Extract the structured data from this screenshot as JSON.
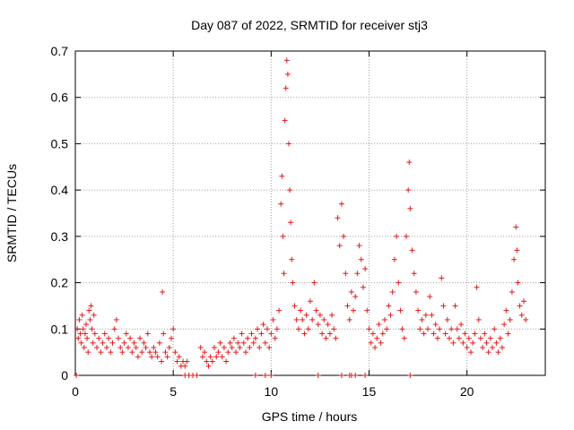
{
  "chart_data": {
    "type": "scatter",
    "title": "Day 087 of 2022, SRMTID for receiver stj3",
    "xlabel": "GPS time / hours",
    "ylabel": "SRMTID / TECUs",
    "xlim": [
      0,
      24
    ],
    "ylim": [
      0,
      0.7
    ],
    "xticks": [
      0,
      5,
      10,
      15,
      20
    ],
    "xtick_labels": [
      "0",
      "5",
      "10",
      "15",
      "20"
    ],
    "yticks": [
      0,
      0.1,
      0.2,
      0.3,
      0.4,
      0.5,
      0.6,
      0.7
    ],
    "ytick_labels": [
      "0",
      "0.1",
      "0.2",
      "0.3",
      "0.4",
      "0.5",
      "0.6",
      "0.7"
    ],
    "grid": true,
    "marker": "+",
    "series": [
      {
        "name": "SRMTID",
        "color": "#e41a1c",
        "points": [
          [
            0.05,
            0.0
          ],
          [
            0.1,
            0.1
          ],
          [
            0.15,
            0.08
          ],
          [
            0.2,
            0.12
          ],
          [
            0.25,
            0.09
          ],
          [
            0.3,
            0.07
          ],
          [
            0.35,
            0.13
          ],
          [
            0.4,
            0.1
          ],
          [
            0.45,
            0.06
          ],
          [
            0.5,
            0.09
          ],
          [
            0.55,
            0.11
          ],
          [
            0.6,
            0.08
          ],
          [
            0.65,
            0.05
          ],
          [
            0.7,
            0.14
          ],
          [
            0.75,
            0.12
          ],
          [
            0.8,
            0.15
          ],
          [
            0.85,
            0.1
          ],
          [
            0.9,
            0.07
          ],
          [
            0.95,
            0.13
          ],
          [
            1.0,
            0.09
          ],
          [
            1.1,
            0.06
          ],
          [
            1.2,
            0.08
          ],
          [
            1.3,
            0.05
          ],
          [
            1.4,
            0.07
          ],
          [
            1.5,
            0.09
          ],
          [
            1.6,
            0.06
          ],
          [
            1.7,
            0.08
          ],
          [
            1.8,
            0.05
          ],
          [
            1.9,
            0.07
          ],
          [
            2.0,
            0.1
          ],
          [
            2.1,
            0.12
          ],
          [
            2.2,
            0.08
          ],
          [
            2.3,
            0.06
          ],
          [
            2.4,
            0.05
          ],
          [
            2.5,
            0.07
          ],
          [
            2.6,
            0.09
          ],
          [
            2.7,
            0.06
          ],
          [
            2.8,
            0.08
          ],
          [
            2.9,
            0.05
          ],
          [
            3.0,
            0.07
          ],
          [
            3.1,
            0.06
          ],
          [
            3.2,
            0.04
          ],
          [
            3.3,
            0.08
          ],
          [
            3.4,
            0.05
          ],
          [
            3.5,
            0.07
          ],
          [
            3.6,
            0.06
          ],
          [
            3.7,
            0.09
          ],
          [
            3.8,
            0.05
          ],
          [
            3.9,
            0.04
          ],
          [
            4.0,
            0.06
          ],
          [
            4.1,
            0.05
          ],
          [
            4.2,
            0.04
          ],
          [
            4.3,
            0.07
          ],
          [
            4.4,
            0.03
          ],
          [
            4.45,
            0.18
          ],
          [
            4.5,
            0.09
          ],
          [
            4.6,
            0.05
          ],
          [
            4.7,
            0.04
          ],
          [
            4.8,
            0.06
          ],
          [
            4.9,
            0.08
          ],
          [
            5.0,
            0.1
          ],
          [
            5.1,
            0.05
          ],
          [
            5.2,
            0.03
          ],
          [
            5.3,
            0.04
          ],
          [
            5.4,
            0.02
          ],
          [
            5.5,
            0.03
          ],
          [
            5.6,
            0.02
          ],
          [
            5.7,
            0.03
          ],
          [
            5.8,
            0.0
          ],
          [
            6.0,
            0.0
          ],
          [
            6.2,
            0.0
          ],
          [
            6.4,
            0.06
          ],
          [
            6.5,
            0.04
          ],
          [
            6.6,
            0.05
          ],
          [
            6.7,
            0.03
          ],
          [
            6.8,
            0.02
          ],
          [
            6.9,
            0.04
          ],
          [
            7.0,
            0.03
          ],
          [
            7.1,
            0.06
          ],
          [
            7.2,
            0.04
          ],
          [
            7.3,
            0.05
          ],
          [
            7.4,
            0.07
          ],
          [
            7.5,
            0.04
          ],
          [
            7.6,
            0.06
          ],
          [
            7.7,
            0.03
          ],
          [
            7.8,
            0.05
          ],
          [
            7.9,
            0.07
          ],
          [
            8.0,
            0.06
          ],
          [
            8.1,
            0.08
          ],
          [
            8.2,
            0.05
          ],
          [
            8.3,
            0.07
          ],
          [
            8.4,
            0.06
          ],
          [
            8.5,
            0.09
          ],
          [
            8.6,
            0.07
          ],
          [
            8.7,
            0.05
          ],
          [
            8.8,
            0.08
          ],
          [
            8.9,
            0.06
          ],
          [
            9.0,
            0.09
          ],
          [
            9.1,
            0.07
          ],
          [
            9.2,
            0.08
          ],
          [
            9.3,
            0.1
          ],
          [
            9.4,
            0.06
          ],
          [
            9.5,
            0.09
          ],
          [
            9.6,
            0.11
          ],
          [
            9.7,
            0.07
          ],
          [
            9.8,
            0.1
          ],
          [
            9.9,
            0.06
          ],
          [
            10.0,
            0.09
          ],
          [
            10.1,
            0.12
          ],
          [
            10.2,
            0.08
          ],
          [
            10.3,
            0.1
          ],
          [
            10.4,
            0.14
          ],
          [
            10.5,
            0.37
          ],
          [
            10.55,
            0.43
          ],
          [
            10.6,
            0.3
          ],
          [
            10.65,
            0.22
          ],
          [
            10.7,
            0.55
          ],
          [
            10.75,
            0.62
          ],
          [
            10.8,
            0.68
          ],
          [
            10.85,
            0.65
          ],
          [
            10.9,
            0.5
          ],
          [
            10.95,
            0.4
          ],
          [
            11.0,
            0.33
          ],
          [
            11.05,
            0.25
          ],
          [
            11.1,
            0.2
          ],
          [
            11.2,
            0.15
          ],
          [
            11.3,
            0.12
          ],
          [
            11.4,
            0.1
          ],
          [
            11.5,
            0.14
          ],
          [
            11.6,
            0.12
          ],
          [
            11.7,
            0.09
          ],
          [
            11.8,
            0.13
          ],
          [
            11.9,
            0.1
          ],
          [
            12.0,
            0.16
          ],
          [
            12.1,
            0.12
          ],
          [
            12.2,
            0.2
          ],
          [
            12.3,
            0.14
          ],
          [
            12.4,
            0.11
          ],
          [
            12.5,
            0.13
          ],
          [
            12.6,
            0.09
          ],
          [
            12.7,
            0.12
          ],
          [
            12.8,
            0.08
          ],
          [
            12.9,
            0.11
          ],
          [
            13.0,
            0.09
          ],
          [
            13.1,
            0.13
          ],
          [
            13.2,
            0.1
          ],
          [
            13.3,
            0.08
          ],
          [
            13.4,
            0.34
          ],
          [
            13.5,
            0.28
          ],
          [
            13.6,
            0.37
          ],
          [
            13.7,
            0.3
          ],
          [
            13.8,
            0.22
          ],
          [
            13.9,
            0.15
          ],
          [
            14.0,
            0.12
          ],
          [
            14.1,
            0.18
          ],
          [
            14.2,
            0.14
          ],
          [
            14.3,
            0.17
          ],
          [
            14.4,
            0.22
          ],
          [
            14.5,
            0.28
          ],
          [
            14.6,
            0.25
          ],
          [
            14.7,
            0.19
          ],
          [
            14.8,
            0.23
          ],
          [
            14.9,
            0.14
          ],
          [
            15.0,
            0.1
          ],
          [
            15.1,
            0.07
          ],
          [
            15.2,
            0.09
          ],
          [
            15.3,
            0.06
          ],
          [
            15.4,
            0.08
          ],
          [
            15.5,
            0.11
          ],
          [
            15.6,
            0.07
          ],
          [
            15.7,
            0.09
          ],
          [
            15.8,
            0.12
          ],
          [
            15.9,
            0.1
          ],
          [
            16.0,
            0.15
          ],
          [
            16.1,
            0.13
          ],
          [
            16.2,
            0.18
          ],
          [
            16.3,
            0.25
          ],
          [
            16.4,
            0.3
          ],
          [
            16.5,
            0.2
          ],
          [
            16.6,
            0.14
          ],
          [
            16.7,
            0.1
          ],
          [
            16.8,
            0.08
          ],
          [
            16.9,
            0.3
          ],
          [
            17.0,
            0.4
          ],
          [
            17.05,
            0.46
          ],
          [
            17.1,
            0.36
          ],
          [
            17.2,
            0.27
          ],
          [
            17.3,
            0.22
          ],
          [
            17.4,
            0.18
          ],
          [
            17.5,
            0.14
          ],
          [
            17.6,
            0.1
          ],
          [
            17.7,
            0.12
          ],
          [
            17.8,
            0.09
          ],
          [
            17.9,
            0.13
          ],
          [
            18.0,
            0.1
          ],
          [
            18.1,
            0.17
          ],
          [
            18.2,
            0.13
          ],
          [
            18.3,
            0.09
          ],
          [
            18.4,
            0.11
          ],
          [
            18.5,
            0.08
          ],
          [
            18.6,
            0.1
          ],
          [
            18.7,
            0.21
          ],
          [
            18.8,
            0.15
          ],
          [
            18.9,
            0.09
          ],
          [
            19.0,
            0.12
          ],
          [
            19.1,
            0.08
          ],
          [
            19.2,
            0.1
          ],
          [
            19.3,
            0.07
          ],
          [
            19.4,
            0.15
          ],
          [
            19.5,
            0.1
          ],
          [
            19.6,
            0.08
          ],
          [
            19.7,
            0.11
          ],
          [
            19.8,
            0.07
          ],
          [
            19.9,
            0.09
          ],
          [
            20.0,
            0.06
          ],
          [
            20.1,
            0.08
          ],
          [
            20.2,
            0.05
          ],
          [
            20.3,
            0.07
          ],
          [
            20.4,
            0.09
          ],
          [
            20.5,
            0.19
          ],
          [
            20.6,
            0.12
          ],
          [
            20.7,
            0.08
          ],
          [
            20.8,
            0.06
          ],
          [
            20.9,
            0.09
          ],
          [
            21.0,
            0.07
          ],
          [
            21.1,
            0.05
          ],
          [
            21.2,
            0.08
          ],
          [
            21.3,
            0.06
          ],
          [
            21.4,
            0.1
          ],
          [
            21.5,
            0.07
          ],
          [
            21.6,
            0.05
          ],
          [
            21.7,
            0.08
          ],
          [
            21.8,
            0.06
          ],
          [
            21.9,
            0.11
          ],
          [
            22.0,
            0.14
          ],
          [
            22.1,
            0.09
          ],
          [
            22.2,
            0.12
          ],
          [
            22.3,
            0.18
          ],
          [
            22.4,
            0.25
          ],
          [
            22.5,
            0.32
          ],
          [
            22.55,
            0.27
          ],
          [
            22.6,
            0.2
          ],
          [
            22.7,
            0.15
          ],
          [
            22.8,
            0.13
          ],
          [
            22.9,
            0.16
          ],
          [
            23.0,
            0.12
          ],
          [
            5.6,
            0.0
          ],
          [
            9.2,
            0.0
          ],
          [
            9.7,
            0.0
          ],
          [
            10.0,
            0.0
          ],
          [
            12.4,
            0.0
          ],
          [
            13.6,
            0.0
          ],
          [
            14.0,
            0.0
          ],
          [
            14.1,
            0.0
          ],
          [
            14.3,
            0.0
          ],
          [
            14.8,
            0.0
          ],
          [
            17.1,
            0.0
          ]
        ]
      }
    ]
  }
}
